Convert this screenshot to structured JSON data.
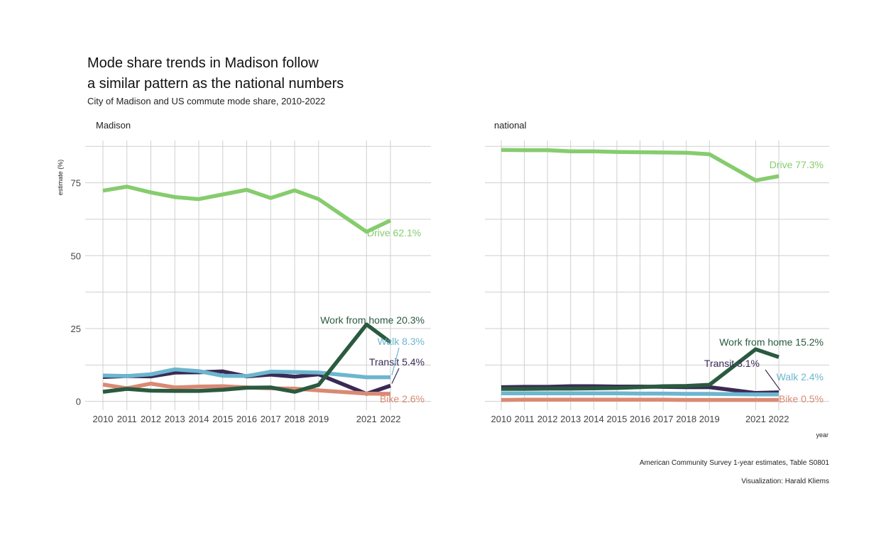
{
  "header": {
    "title_line1": "Mode share trends in Madison follow",
    "title_line2": "a similar pattern as the national numbers",
    "subtitle": "City of Madison and US commute mode share, 2010-2022"
  },
  "caption": {
    "source": "American Community Survey 1-year estimates, Table S0801",
    "credit": "Visualization: Harald Kliems"
  },
  "colors": {
    "Drive": "#86cc6e",
    "Work from home": "#2a5a3f",
    "Walk": "#6cb6cf",
    "Transit": "#3a2a55",
    "Bike": "#d98a74",
    "grid": "#cfcfcf"
  },
  "chart_data": {
    "type": "line",
    "xlabel": "year",
    "ylabel": "estimate (%)",
    "x": [
      2010,
      2011,
      2012,
      2013,
      2014,
      2015,
      2016,
      2017,
      2018,
      2019,
      2021,
      2022
    ],
    "x_ticks": [
      "2010",
      "2011",
      "2012",
      "2013",
      "2014",
      "2015",
      "2016",
      "2017",
      "2018",
      "2019",
      "2021",
      "2022"
    ],
    "ylim": [
      -3,
      90
    ],
    "y_ticks": [
      0,
      25,
      50,
      75
    ],
    "grid": true,
    "legend": "none (direct labels)",
    "panels": [
      {
        "name": "Madison",
        "series": [
          {
            "name": "Drive",
            "values": [
              72.3,
              73.7,
              71.7,
              70.1,
              69.4,
              71.0,
              72.6,
              69.8,
              72.4,
              69.4,
              58.2,
              62.1
            ],
            "label": "Drive 62.1%"
          },
          {
            "name": "Transit",
            "values": [
              8.4,
              8.7,
              8.6,
              9.9,
              10.0,
              10.3,
              8.6,
              9.2,
              8.5,
              9.3,
              2.6,
              5.4
            ],
            "label": "Transit 5.4%"
          },
          {
            "name": "Bike",
            "values": [
              5.8,
              4.5,
              6.1,
              4.8,
              5.1,
              5.2,
              4.8,
              4.5,
              4.4,
              3.8,
              2.7,
              2.6
            ],
            "label": "Bike 2.6%"
          },
          {
            "name": "Walk",
            "values": [
              8.9,
              8.7,
              9.3,
              11.0,
              10.4,
              8.8,
              8.7,
              10.2,
              10.1,
              9.9,
              8.3,
              8.3
            ],
            "label": "Walk 8.3%"
          },
          {
            "name": "Work from home",
            "values": [
              3.3,
              4.3,
              3.7,
              3.6,
              3.6,
              4.0,
              4.7,
              4.8,
              3.3,
              5.7,
              26.4,
              20.3
            ],
            "label": "Work from home 20.3%"
          }
        ]
      },
      {
        "name": "national",
        "series": [
          {
            "name": "Drive",
            "values": [
              86.3,
              86.2,
              86.2,
              85.8,
              85.8,
              85.6,
              85.5,
              85.4,
              85.3,
              84.8,
              75.8,
              77.3
            ],
            "label": "Drive 77.3%"
          },
          {
            "name": "Transit",
            "values": [
              4.9,
              5.0,
              5.0,
              5.2,
              5.2,
              5.1,
              5.1,
              5.0,
              4.9,
              4.9,
              2.9,
              3.1
            ],
            "label": "Transit 3.1%"
          },
          {
            "name": "Bike",
            "values": [
              0.5,
              0.6,
              0.6,
              0.6,
              0.6,
              0.6,
              0.6,
              0.6,
              0.5,
              0.5,
              0.5,
              0.5
            ],
            "label": "Bike 0.5%"
          },
          {
            "name": "Walk",
            "values": [
              2.8,
              2.8,
              2.8,
              2.8,
              2.8,
              2.8,
              2.7,
              2.7,
              2.6,
              2.6,
              2.4,
              2.4
            ],
            "label": "Walk 2.4%"
          },
          {
            "name": "Work from home",
            "values": [
              4.3,
              4.3,
              4.4,
              4.4,
              4.5,
              4.6,
              4.9,
              5.2,
              5.3,
              5.7,
              17.9,
              15.2
            ],
            "label": "Work from home 15.2%"
          }
        ]
      }
    ]
  }
}
